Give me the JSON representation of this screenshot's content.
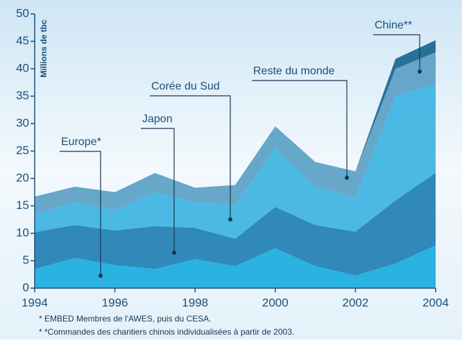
{
  "chart_data": {
    "type": "stacked-area",
    "y_label": "Millions de tbc",
    "x": [
      1994,
      1995,
      1996,
      1997,
      1998,
      1999,
      2000,
      2001,
      2002,
      2003,
      2004
    ],
    "series": [
      {
        "name": "Europe*",
        "color": "#19acdf",
        "values": [
          3.5,
          5.5,
          4.2,
          3.5,
          5.3,
          4.0,
          7.3,
          4.0,
          2.3,
          4.5,
          7.8
        ]
      },
      {
        "name": "Japon",
        "color": "#1f7fb3",
        "values": [
          6.7,
          6.0,
          6.3,
          7.8,
          5.7,
          5.0,
          7.5,
          7.5,
          8.0,
          11.5,
          13.2
        ]
      },
      {
        "name": "Corée du Sud",
        "color": "#3db3e2",
        "values": [
          3.1,
          4.2,
          3.7,
          6.2,
          4.6,
          6.2,
          10.7,
          7.0,
          6.2,
          19.0,
          16.3
        ]
      },
      {
        "name": "Reste du monde",
        "color": "#5a9fc6",
        "values": [
          3.4,
          2.8,
          3.3,
          3.5,
          2.7,
          3.6,
          4.0,
          4.5,
          4.8,
          5.0,
          5.7
        ]
      },
      {
        "name": "Chine**",
        "color": "#17668f",
        "values": [
          0,
          0,
          0,
          0,
          0,
          0,
          0,
          0,
          0,
          1.8,
          2.2
        ]
      }
    ],
    "xlim": [
      1994,
      2004
    ],
    "xticks": [
      1994,
      1996,
      1998,
      2000,
      2002,
      2004
    ],
    "ylim": [
      0,
      50
    ],
    "yticks": [
      0,
      5,
      10,
      15,
      20,
      25,
      30,
      35,
      40,
      45,
      50
    ],
    "notes": [
      "* EMBED Membres de l'AWES, puis du CESA.",
      "* *Commandes des chantiers chinois individualisées à partir de 2003."
    ]
  }
}
